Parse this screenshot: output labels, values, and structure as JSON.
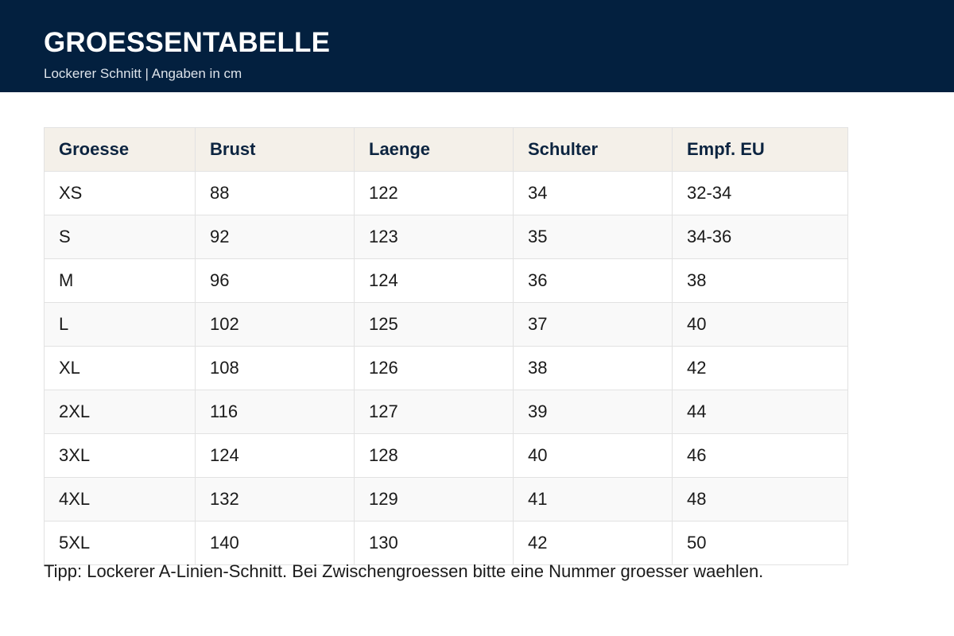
{
  "header": {
    "title": "GROESSENTABELLE",
    "subtitle": "Lockerer Schnitt | Angaben in cm"
  },
  "table": {
    "columns": [
      "Groesse",
      "Brust",
      "Laenge",
      "Schulter",
      "Empf. EU"
    ],
    "rows": [
      [
        "XS",
        "88",
        "122",
        "34",
        "32-34"
      ],
      [
        "S",
        "92",
        "123",
        "35",
        "34-36"
      ],
      [
        "M",
        "96",
        "124",
        "36",
        "38"
      ],
      [
        "L",
        "102",
        "125",
        "37",
        "40"
      ],
      [
        "XL",
        "108",
        "126",
        "38",
        "42"
      ],
      [
        "2XL",
        "116",
        "127",
        "39",
        "44"
      ],
      [
        "3XL",
        "124",
        "128",
        "40",
        "46"
      ],
      [
        "4XL",
        "132",
        "129",
        "41",
        "48"
      ],
      [
        "5XL",
        "140",
        "130",
        "42",
        "50"
      ]
    ]
  },
  "footer": {
    "tip": "Tipp: Lockerer A-Linien-Schnitt. Bei Zwischengroessen bitte eine Nummer groesser waehlen."
  },
  "colors": {
    "header_bg": "#03203f",
    "table_header_bg": "#f4f0e9"
  }
}
